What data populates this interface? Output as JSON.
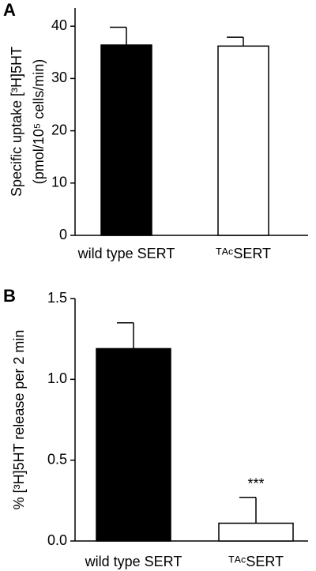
{
  "chart_data": [
    {
      "type": "bar",
      "panel": "A",
      "ylabel": [
        "Specific uptake [³H]5HT",
        "(pmol/10⁵ cells/min)"
      ],
      "categories": [
        "wild type SERT",
        "ᵀᴬᶜSERT"
      ],
      "series": [
        {
          "values": [
            36.4,
            36.2
          ],
          "errors": [
            3.4,
            1.7
          ],
          "colors": [
            "#000000",
            "#ffffff"
          ]
        }
      ],
      "ylim": [
        0,
        43.5
      ],
      "yticks": [
        0,
        10,
        20,
        30,
        40
      ]
    },
    {
      "type": "bar",
      "panel": "B",
      "ylabel": [
        "% [³H]5HT release  per 2 min"
      ],
      "categories": [
        "wild type SERT",
        "ᵀᴬᶜSERT"
      ],
      "series": [
        {
          "values": [
            1.19,
            0.11
          ],
          "errors": [
            0.16,
            0.16
          ],
          "colors": [
            "#000000",
            "#ffffff"
          ]
        }
      ],
      "annotations": [
        {
          "text": "***",
          "category": 1
        }
      ],
      "ylim": [
        0,
        1.5
      ],
      "yticks": [
        {
          "value": 0,
          "label": "0.0"
        },
        {
          "value": 0.5,
          "label": "0.5"
        },
        {
          "value": 1,
          "label": "1.0"
        },
        {
          "value": 1.5,
          "label": "1.5"
        }
      ]
    }
  ]
}
